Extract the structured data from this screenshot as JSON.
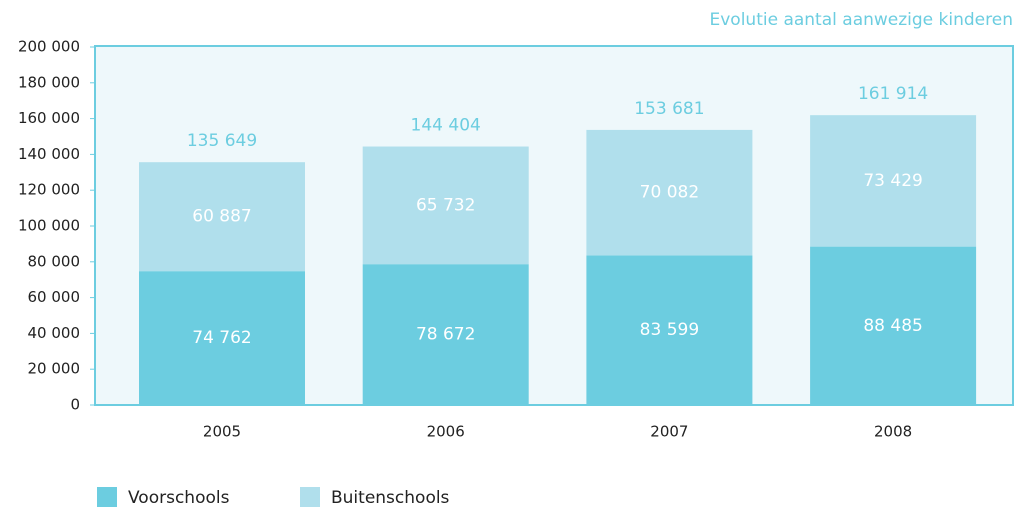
{
  "chart_data": {
    "type": "stacked_bar",
    "title": "Evolutie aantal aanwezige kinderen",
    "categories": [
      "2005",
      "2006",
      "2007",
      "2008"
    ],
    "series": [
      {
        "name": "Voorschools",
        "color": "#6ccde0",
        "values": [
          74762,
          78672,
          83599,
          88485
        ],
        "value_labels": [
          "74 762",
          "78 672",
          "83 599",
          "88 485"
        ]
      },
      {
        "name": "Buitenschools",
        "color": "#b0dfec",
        "values": [
          60887,
          65732,
          70082,
          73429
        ],
        "value_labels": [
          "60 887",
          "65 732",
          "70 082",
          "73 429"
        ]
      }
    ],
    "totals": [
      135649,
      144404,
      153681,
      161914
    ],
    "total_labels": [
      "135 649",
      "144 404",
      "153 681",
      "161 914"
    ],
    "ylim": [
      0,
      200000
    ],
    "yticks": [
      0,
      {
        "value": 20000,
        "label": "20 000"
      },
      {
        "value": 40000,
        "label": "40 000"
      },
      {
        "value": 60000,
        "label": "60 000"
      },
      {
        "value": 80000,
        "label": "80 000"
      },
      {
        "value": 100000,
        "label": "100 000"
      },
      {
        "value": 120000,
        "label": "120 000"
      },
      {
        "value": 140000,
        "label": "140 000"
      },
      {
        "value": 160000,
        "label": "160 000"
      },
      {
        "value": 180000,
        "label": "180 000"
      },
      {
        "value": 200000,
        "label": "200 000"
      }
    ]
  }
}
